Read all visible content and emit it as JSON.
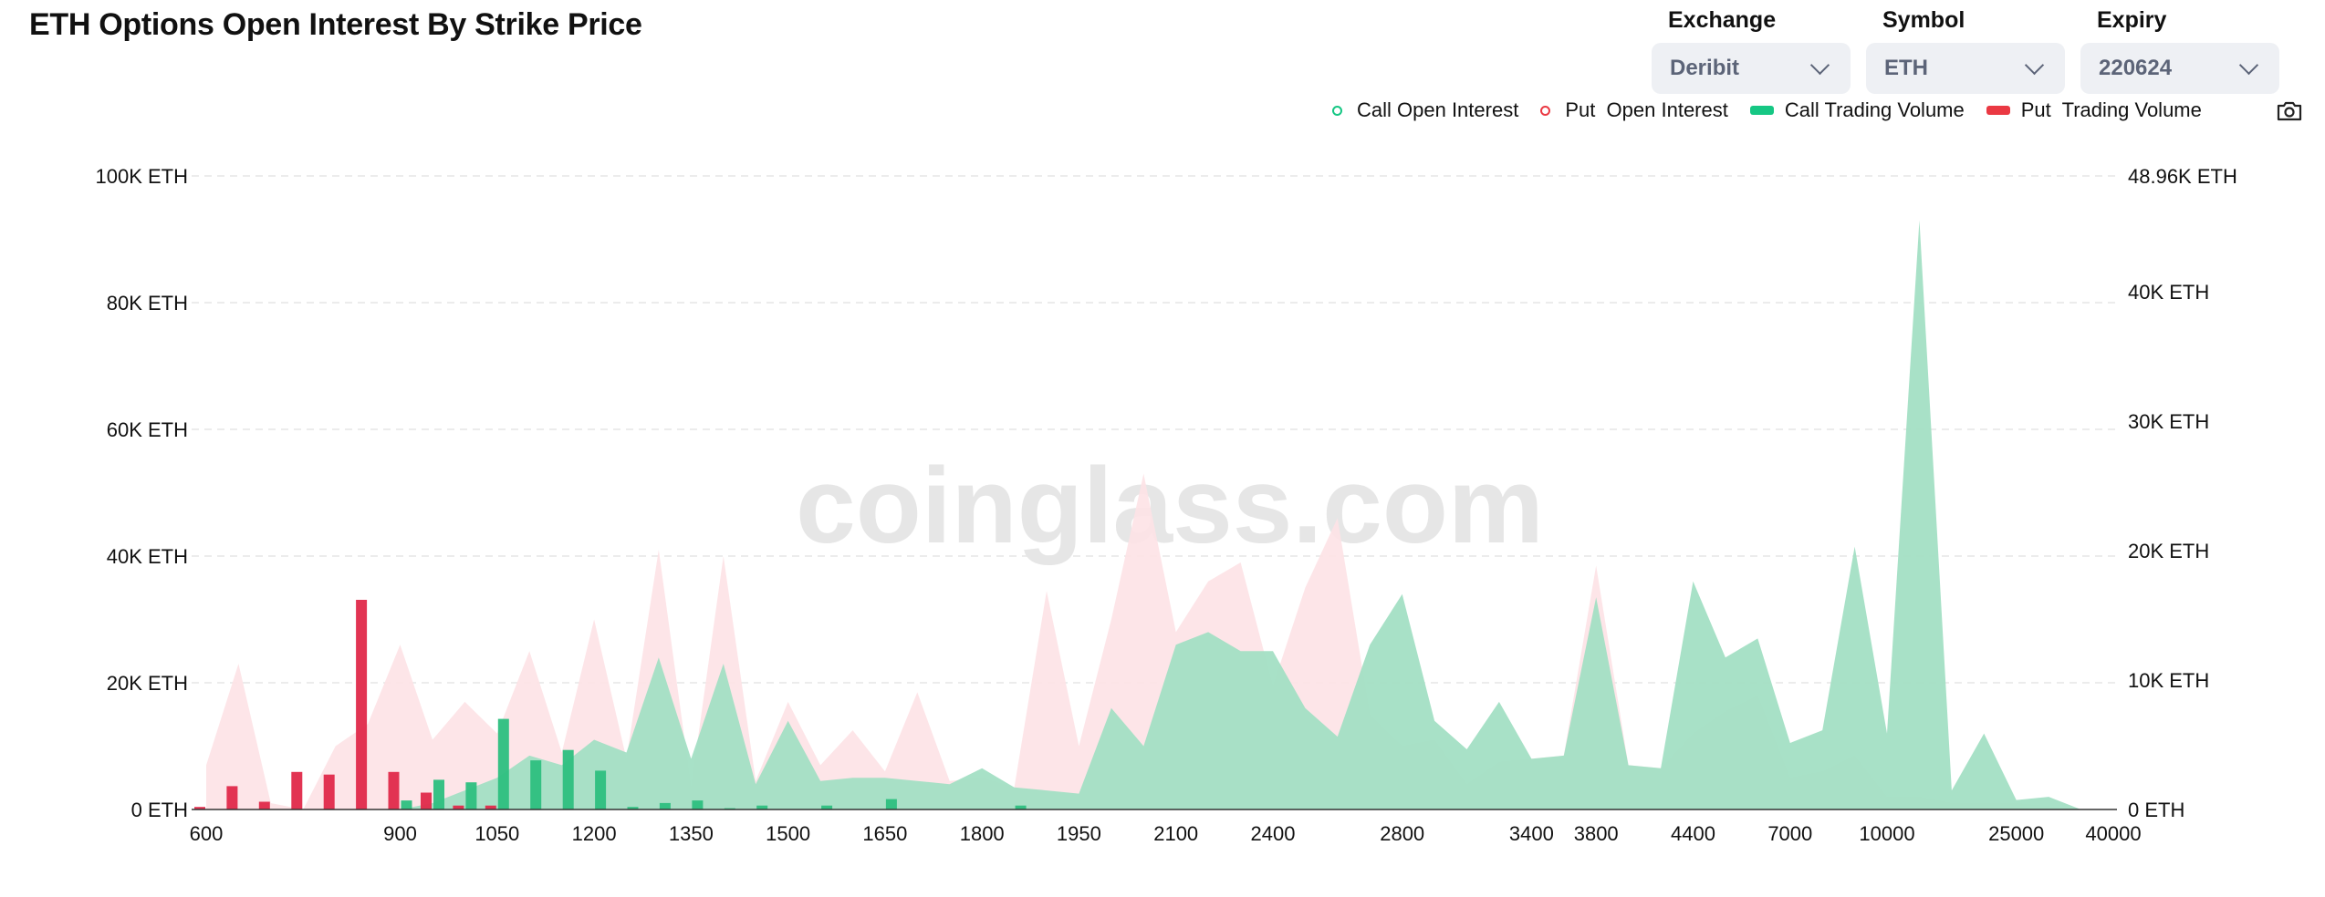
{
  "title": "ETH Options Open Interest By Strike Price",
  "filters": [
    {
      "label": "Exchange",
      "value": "Deribit"
    },
    {
      "label": "Symbol",
      "value": "ETH"
    },
    {
      "label": "Expiry",
      "value": "220624"
    }
  ],
  "legend": [
    {
      "label": "Call Open Interest",
      "style": "ring",
      "color": "#16c784"
    },
    {
      "label": "Put  Open Interest",
      "style": "ring",
      "color": "#ea3943"
    },
    {
      "label": "Call Trading Volume",
      "style": "bar",
      "color": "#16c784"
    },
    {
      "label": "Put  Trading Volume",
      "style": "bar",
      "color": "#ea3943"
    }
  ],
  "watermark": "coinglass.com",
  "colors": {
    "call_area": "#a3dfc4",
    "put_area": "#fde2e6",
    "call_bar": "#2dbf80",
    "put_bar": "#e0294a",
    "grid": "#e6e6e6"
  },
  "chart_data": {
    "type": "area",
    "x": [
      600,
      650,
      700,
      750,
      800,
      850,
      900,
      950,
      1000,
      1050,
      1100,
      1150,
      1200,
      1250,
      1300,
      1350,
      1400,
      1450,
      1500,
      1550,
      1600,
      1650,
      1700,
      1750,
      1800,
      1850,
      1900,
      1950,
      2000,
      2050,
      2100,
      2200,
      2300,
      2400,
      2500,
      2600,
      2700,
      2800,
      2900,
      3000,
      3200,
      3400,
      3600,
      3800,
      4000,
      4200,
      4400,
      5000,
      6000,
      7000,
      8000,
      9000,
      10000,
      12000,
      15000,
      20000,
      25000,
      30000,
      35000,
      40000
    ],
    "x_tick_labels": [
      "600",
      "900",
      "1050",
      "1200",
      "1350",
      "1500",
      "1650",
      "1800",
      "1950",
      "2100",
      "2400",
      "2800",
      "3400",
      "3800",
      "4400",
      "7000",
      "10000",
      "25000",
      "40000"
    ],
    "y_left": {
      "ticks": [
        "0 ETH",
        "20K ETH",
        "40K ETH",
        "60K ETH",
        "80K ETH",
        "100K ETH"
      ],
      "range": [
        0,
        100000
      ]
    },
    "y_right": {
      "ticks": [
        "0 ETH",
        "10K ETH",
        "20K ETH",
        "30K ETH",
        "40K ETH",
        "48.96K ETH"
      ],
      "range": [
        0,
        48960
      ]
    },
    "series": [
      {
        "name": "Call Open Interest",
        "axis": "left",
        "kind": "area",
        "values": [
          0,
          0,
          0,
          0,
          0,
          0,
          0,
          1000,
          3000,
          5000,
          8500,
          7000,
          11000,
          9000,
          24000,
          8000,
          23000,
          4000,
          14000,
          4500,
          5000,
          5000,
          4500,
          4000,
          6500,
          3500,
          3000,
          2500,
          16000,
          10000,
          26000,
          28000,
          25000,
          25000,
          16000,
          11500,
          26000,
          34000,
          14000,
          9500,
          17000,
          8000,
          8500,
          33500,
          7000,
          6500,
          36000,
          24000,
          27000,
          10500,
          12500,
          41500,
          12000,
          93000,
          3000,
          12000,
          1500,
          2000,
          0,
          0
        ]
      },
      {
        "name": "Put  Open Interest",
        "axis": "left",
        "kind": "area",
        "values": [
          7000,
          23000,
          1000,
          0,
          10000,
          13500,
          26000,
          11000,
          17000,
          12000,
          25000,
          9000,
          30000,
          8000,
          41000,
          3500,
          40000,
          4500,
          17000,
          7000,
          12500,
          6000,
          18500,
          4500,
          5000,
          3500,
          34500,
          10000,
          30000,
          53000,
          28000,
          36000,
          39000,
          19500,
          35000,
          46000,
          15000,
          10000,
          11000,
          4000,
          7500,
          8000,
          8500,
          38500,
          7000,
          6500,
          12000,
          15500,
          18000,
          5000,
          6000,
          8500,
          2000,
          2000,
          1000,
          1000,
          1000,
          500,
          0,
          0
        ]
      },
      {
        "name": "Call Trading Volume",
        "axis": "right",
        "kind": "bar",
        "values": [
          0,
          0,
          0,
          0,
          0,
          0,
          700,
          2300,
          2100,
          7000,
          3800,
          4600,
          3000,
          200,
          500,
          700,
          100,
          300,
          0,
          300,
          0,
          800,
          0,
          0,
          0,
          300,
          0,
          0,
          0,
          0,
          0,
          0,
          0,
          0,
          0,
          0,
          0,
          0,
          0,
          0,
          0,
          0,
          0,
          0,
          0,
          0,
          0,
          0,
          0,
          0,
          0,
          0,
          0,
          0,
          0,
          0,
          0,
          0,
          0,
          0
        ]
      },
      {
        "name": "Put  Trading Volume",
        "axis": "right",
        "kind": "bar",
        "values": [
          200,
          1800,
          600,
          2900,
          2700,
          16200,
          2900,
          1300,
          300,
          300,
          0,
          0,
          0,
          0,
          0,
          0,
          0,
          0,
          0,
          0,
          0,
          0,
          0,
          0,
          0,
          0,
          0,
          0,
          0,
          0,
          0,
          0,
          0,
          0,
          0,
          0,
          0,
          0,
          0,
          0,
          0,
          0,
          0,
          0,
          0,
          0,
          0,
          0,
          0,
          0,
          0,
          0,
          0,
          0,
          0,
          0,
          0,
          0,
          0,
          0
        ]
      }
    ],
    "grid": true,
    "legend_position": "top-right"
  }
}
